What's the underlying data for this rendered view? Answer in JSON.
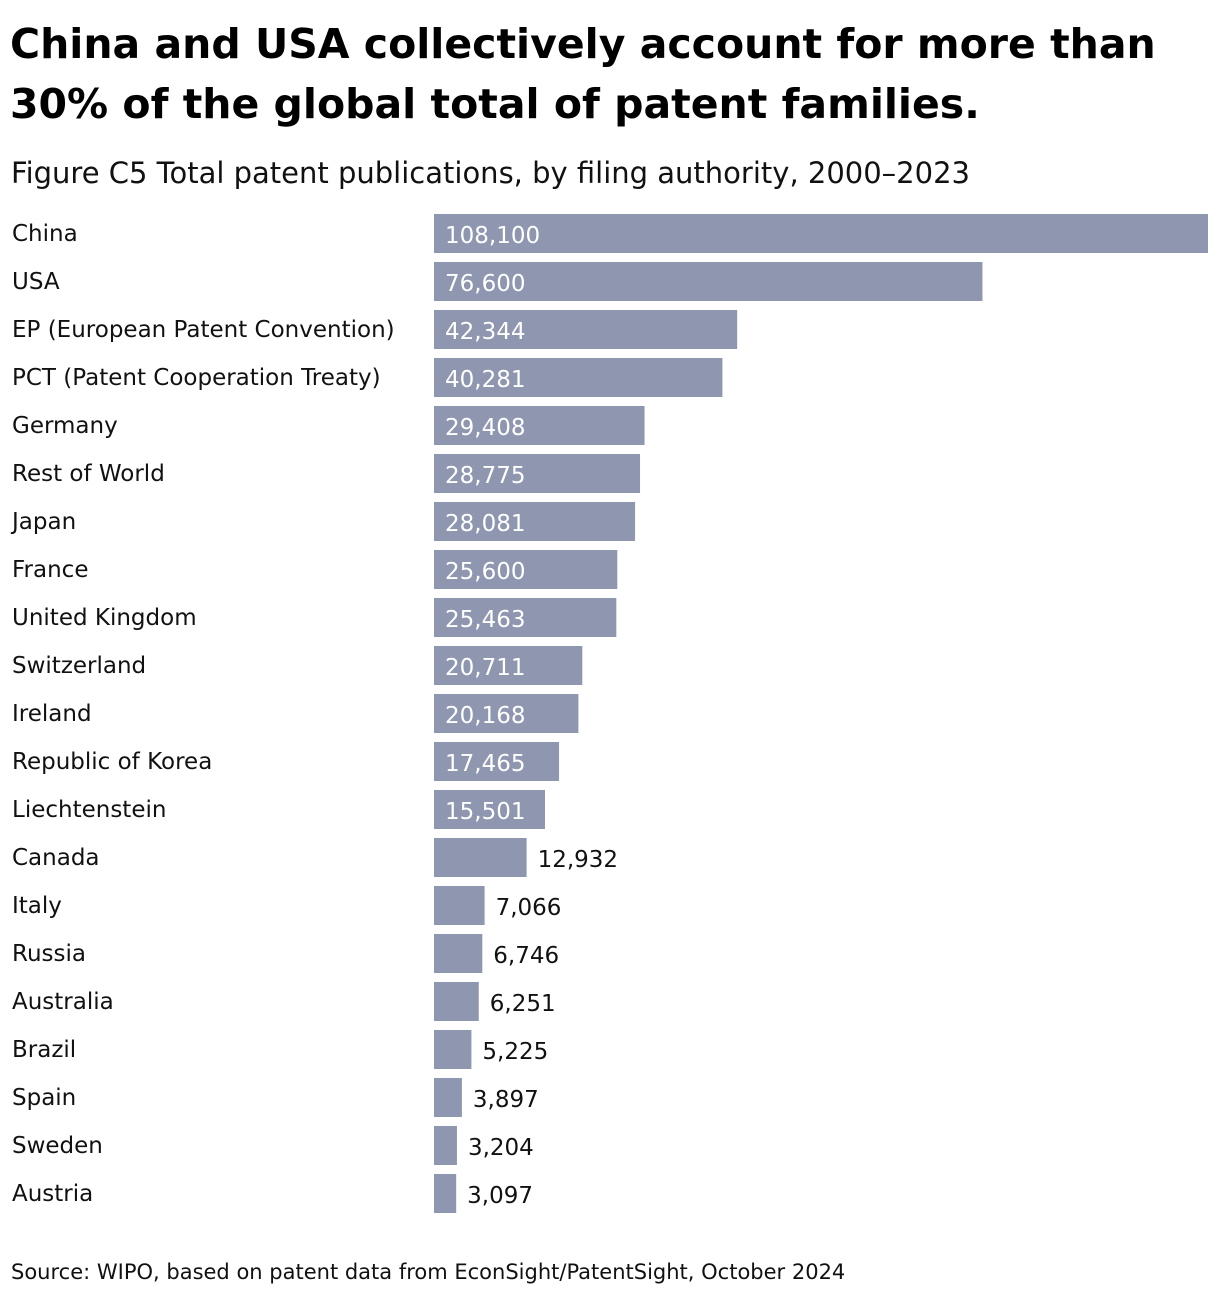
{
  "headline": "China and USA collectively account for more than 30% of the global total of patent families.",
  "subtitle": "Figure C5 Total patent publications, by filing authority, 2000–2023",
  "source": "Source: WIPO, based on patent data from EconSight/PatentSight, October 2024",
  "colors": {
    "bar": "#8e96b0",
    "label_inside": "#ffffff",
    "label_outside": "#111111"
  },
  "chart_data": {
    "type": "bar",
    "orientation": "horizontal",
    "title": "Figure C5 Total patent publications, by filing authority, 2000–2023",
    "xlabel": "",
    "ylabel": "",
    "xlim": [
      0,
      108100
    ],
    "grid": false,
    "legend": "none",
    "categories": [
      "China",
      "USA",
      "EP (European Patent Convention)",
      "PCT (Patent Cooperation Treaty)",
      "Germany",
      "Rest of World",
      "Japan",
      "France",
      "United Kingdom",
      "Switzerland",
      "Ireland",
      "Republic of Korea",
      "Liechtenstein",
      "Canada",
      "Italy",
      "Russia",
      "Australia",
      "Brazil",
      "Spain",
      "Sweden",
      "Austria"
    ],
    "values": [
      108100,
      76600,
      42344,
      40281,
      29408,
      28775,
      28081,
      25600,
      25463,
      20711,
      20168,
      17465,
      15501,
      12932,
      7066,
      6746,
      6251,
      5225,
      3897,
      3204,
      3097
    ],
    "value_labels": [
      "108,100",
      "76,600",
      "42,344",
      "40,281",
      "29,408",
      "28,775",
      "28,081",
      "25,600",
      "25,463",
      "20,711",
      "20,168",
      "17,465",
      "15,501",
      "12,932",
      "7,066",
      "6,746",
      "6,251",
      "5,225",
      "3,897",
      "3,204",
      "3,097"
    ]
  }
}
